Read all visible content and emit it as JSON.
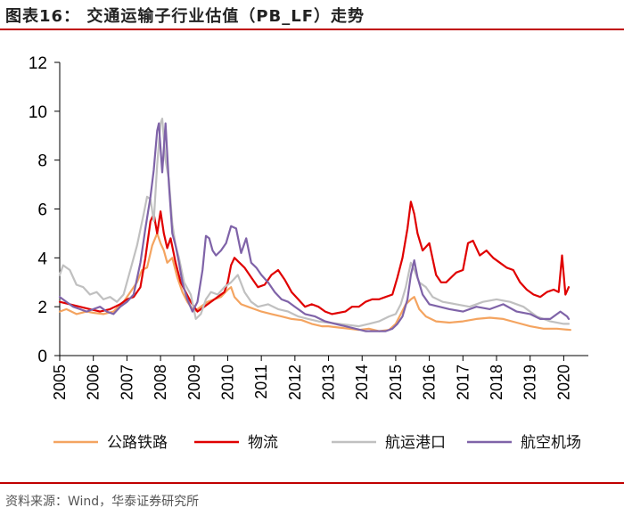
{
  "header": {
    "title": "图表16：  交通运输子行业估值（PB_LF）走势"
  },
  "footer": {
    "source": "资料来源：Wind，华泰证券研究所"
  },
  "chart_data": {
    "type": "line",
    "title": "交通运输子行业估值（PB_LF）走势",
    "xlabel": "",
    "ylabel": "",
    "ylim": [
      0,
      12
    ],
    "xlim": [
      2005,
      2020.6
    ],
    "yticks": [
      "0",
      "2",
      "4",
      "6",
      "8",
      "10",
      "12"
    ],
    "xticks": [
      "2005",
      "2006",
      "2007",
      "2008",
      "2009",
      "2010",
      "2011",
      "2012",
      "2013",
      "2014",
      "2015",
      "2016",
      "2017",
      "2018",
      "2019",
      "2020"
    ],
    "legend_position": "bottom",
    "grid": false,
    "series": [
      {
        "name": "公路铁路",
        "color": "#f4a460",
        "x": [
          2005.0,
          2005.2,
          2005.5,
          2005.8,
          2006.0,
          2006.3,
          2006.6,
          2006.9,
          2007.1,
          2007.3,
          2007.45,
          2007.6,
          2007.75,
          2007.9,
          2008.0,
          2008.1,
          2008.2,
          2008.35,
          2008.5,
          2008.65,
          2008.8,
          2009.0,
          2009.2,
          2009.4,
          2009.6,
          2009.8,
          2010.0,
          2010.1,
          2010.2,
          2010.4,
          2010.6,
          2010.8,
          2011.0,
          2011.3,
          2011.6,
          2011.9,
          2012.2,
          2012.5,
          2012.8,
          2013.0,
          2013.3,
          2013.6,
          2013.9,
          2014.2,
          2014.5,
          2014.8,
          2015.0,
          2015.15,
          2015.3,
          2015.45,
          2015.55,
          2015.7,
          2015.9,
          2016.2,
          2016.6,
          2017.0,
          2017.4,
          2017.8,
          2018.2,
          2018.6,
          2019.0,
          2019.4,
          2019.8,
          2020.2
        ],
        "values": [
          1.8,
          1.9,
          1.7,
          1.8,
          1.75,
          1.7,
          1.8,
          2.2,
          2.6,
          3.0,
          3.5,
          3.6,
          4.5,
          5.0,
          4.6,
          4.3,
          3.8,
          4.0,
          3.2,
          2.6,
          2.2,
          1.8,
          2.0,
          2.2,
          2.3,
          2.4,
          2.7,
          2.8,
          2.4,
          2.1,
          2.0,
          1.9,
          1.8,
          1.7,
          1.6,
          1.5,
          1.45,
          1.3,
          1.2,
          1.2,
          1.15,
          1.1,
          1.05,
          1.1,
          1.0,
          1.05,
          1.3,
          1.7,
          2.1,
          2.3,
          2.4,
          1.9,
          1.6,
          1.4,
          1.35,
          1.4,
          1.5,
          1.55,
          1.5,
          1.35,
          1.2,
          1.1,
          1.1,
          1.05
        ]
      },
      {
        "name": "物流",
        "color": "#e00000",
        "x": [
          2005.0,
          2005.3,
          2005.6,
          2005.9,
          2006.2,
          2006.5,
          2006.8,
          2007.0,
          2007.2,
          2007.4,
          2007.55,
          2007.7,
          2007.8,
          2007.9,
          2008.0,
          2008.1,
          2008.2,
          2008.3,
          2008.45,
          2008.6,
          2008.75,
          2008.9,
          2009.1,
          2009.3,
          2009.5,
          2009.7,
          2009.9,
          2010.0,
          2010.1,
          2010.2,
          2010.35,
          2010.5,
          2010.7,
          2010.9,
          2011.1,
          2011.3,
          2011.5,
          2011.7,
          2011.9,
          2012.1,
          2012.3,
          2012.5,
          2012.7,
          2012.9,
          2013.1,
          2013.3,
          2013.5,
          2013.7,
          2013.9,
          2014.1,
          2014.3,
          2014.5,
          2014.7,
          2014.9,
          2015.05,
          2015.2,
          2015.35,
          2015.45,
          2015.55,
          2015.65,
          2015.8,
          2016.0,
          2016.2,
          2016.35,
          2016.5,
          2016.8,
          2017.0,
          2017.15,
          2017.3,
          2017.5,
          2017.7,
          2017.9,
          2018.1,
          2018.3,
          2018.5,
          2018.7,
          2018.9,
          2019.1,
          2019.3,
          2019.5,
          2019.7,
          2019.85,
          2019.95,
          2020.05,
          2020.15
        ],
        "values": [
          2.2,
          2.1,
          2.0,
          1.9,
          1.8,
          1.9,
          2.1,
          2.3,
          2.4,
          2.8,
          4.0,
          5.5,
          5.8,
          5.0,
          5.9,
          5.0,
          4.4,
          4.8,
          3.8,
          3.0,
          2.6,
          2.2,
          1.8,
          2.0,
          2.2,
          2.4,
          2.6,
          3.0,
          3.7,
          4.0,
          3.8,
          3.6,
          3.2,
          2.8,
          2.9,
          3.3,
          3.5,
          3.1,
          2.6,
          2.3,
          2.0,
          2.1,
          2.0,
          1.8,
          1.7,
          1.75,
          1.8,
          2.0,
          2.0,
          2.2,
          2.3,
          2.3,
          2.4,
          2.5,
          3.2,
          4.0,
          5.2,
          6.3,
          5.8,
          5.0,
          4.3,
          4.6,
          3.3,
          3.0,
          3.0,
          3.4,
          3.5,
          4.6,
          4.7,
          4.1,
          4.3,
          4.0,
          3.8,
          3.6,
          3.5,
          3.0,
          2.7,
          2.5,
          2.4,
          2.6,
          2.7,
          2.6,
          4.1,
          2.5,
          2.8
        ]
      },
      {
        "name": "航运港口",
        "color": "#c0c0c0",
        "x": [
          2005.0,
          2005.1,
          2005.3,
          2005.5,
          2005.7,
          2005.9,
          2006.1,
          2006.3,
          2006.5,
          2006.7,
          2006.9,
          2007.1,
          2007.3,
          2007.5,
          2007.6,
          2007.7,
          2007.8,
          2007.9,
          2008.0,
          2008.05,
          2008.15,
          2008.25,
          2008.35,
          2008.45,
          2008.55,
          2008.7,
          2008.9,
          2009.05,
          2009.2,
          2009.35,
          2009.5,
          2009.7,
          2009.9,
          2010.1,
          2010.3,
          2010.5,
          2010.7,
          2010.9,
          2011.2,
          2011.5,
          2011.8,
          2012.1,
          2012.4,
          2012.7,
          2013.0,
          2013.3,
          2013.6,
          2013.9,
          2014.2,
          2014.5,
          2014.8,
          2015.0,
          2015.15,
          2015.3,
          2015.45,
          2015.55,
          2015.7,
          2015.9,
          2016.1,
          2016.4,
          2016.8,
          2017.2,
          2017.6,
          2018.0,
          2018.4,
          2018.8,
          2019.2,
          2019.6,
          2020.0,
          2020.15
        ],
        "values": [
          3.3,
          3.7,
          3.5,
          2.9,
          2.8,
          2.5,
          2.6,
          2.3,
          2.4,
          2.2,
          2.5,
          3.5,
          4.5,
          5.8,
          6.5,
          6.4,
          5.5,
          7.8,
          9.5,
          9.7,
          8.0,
          7.2,
          5.4,
          4.5,
          4.0,
          3.0,
          2.5,
          1.5,
          1.7,
          2.3,
          2.6,
          2.5,
          2.8,
          3.0,
          3.3,
          2.6,
          2.2,
          2.0,
          2.1,
          1.9,
          1.8,
          1.6,
          1.5,
          1.4,
          1.35,
          1.3,
          1.25,
          1.2,
          1.3,
          1.4,
          1.6,
          1.7,
          2.1,
          2.8,
          3.8,
          3.5,
          3.0,
          2.8,
          2.4,
          2.2,
          2.1,
          2.0,
          2.2,
          2.3,
          2.2,
          2.0,
          1.6,
          1.4,
          1.3,
          1.3
        ]
      },
      {
        "name": "航空机场",
        "color": "#7f63a8",
        "x": [
          2005.0,
          2005.2,
          2005.4,
          2005.6,
          2005.8,
          2006.0,
          2006.2,
          2006.4,
          2006.6,
          2006.8,
          2007.0,
          2007.2,
          2007.4,
          2007.55,
          2007.7,
          2007.8,
          2007.9,
          2007.95,
          2008.05,
          2008.15,
          2008.25,
          2008.35,
          2008.45,
          2008.55,
          2008.65,
          2008.8,
          2008.95,
          2009.1,
          2009.25,
          2009.35,
          2009.45,
          2009.55,
          2009.65,
          2009.8,
          2009.95,
          2010.1,
          2010.25,
          2010.4,
          2010.55,
          2010.7,
          2010.85,
          2011.0,
          2011.2,
          2011.4,
          2011.6,
          2011.8,
          2012.0,
          2012.3,
          2012.6,
          2012.9,
          2013.2,
          2013.5,
          2013.8,
          2014.1,
          2014.4,
          2014.7,
          2014.9,
          2015.05,
          2015.2,
          2015.35,
          2015.45,
          2015.55,
          2015.65,
          2015.8,
          2016.0,
          2016.3,
          2016.6,
          2017.0,
          2017.4,
          2017.8,
          2018.2,
          2018.6,
          2019.0,
          2019.3,
          2019.6,
          2019.9,
          2020.1,
          2020.15
        ],
        "values": [
          2.4,
          2.2,
          2.0,
          1.9,
          1.8,
          1.9,
          2.0,
          1.8,
          1.7,
          2.0,
          2.2,
          2.5,
          3.8,
          5.2,
          6.5,
          7.6,
          9.2,
          9.5,
          7.5,
          9.5,
          7.0,
          5.0,
          4.5,
          3.8,
          3.0,
          2.3,
          1.8,
          2.2,
          3.5,
          4.9,
          4.8,
          4.3,
          4.1,
          4.3,
          4.6,
          5.3,
          5.2,
          4.2,
          4.8,
          3.8,
          3.6,
          3.3,
          3.0,
          2.6,
          2.3,
          2.2,
          2.0,
          1.7,
          1.6,
          1.4,
          1.3,
          1.2,
          1.1,
          1.0,
          1.0,
          1.0,
          1.1,
          1.3,
          1.6,
          2.3,
          3.3,
          3.9,
          3.2,
          2.5,
          2.1,
          2.0,
          1.9,
          1.8,
          2.0,
          1.9,
          2.1,
          1.8,
          1.7,
          1.5,
          1.5,
          1.8,
          1.6,
          1.5
        ]
      }
    ]
  }
}
